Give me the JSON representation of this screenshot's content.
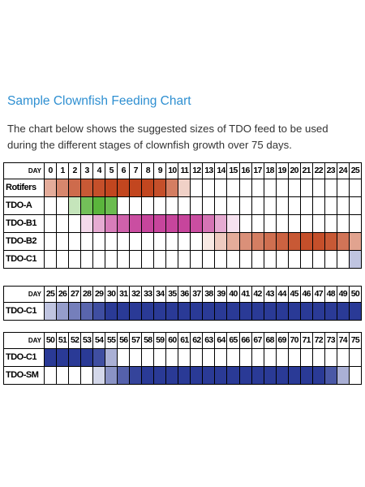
{
  "title": "Sample Clownfish Feeding Chart",
  "description": [
    "The chart below shows the suggested sizes of TDO feed to be used",
    "during the different stages of clownfish growth over 75 days."
  ],
  "colors": {
    "title": "#2e8fd1",
    "rotifers": "#c2461f",
    "tdo_a": "#5ab53c",
    "tdo_b1": "#c7459c",
    "tdo_b2": "#c2461f",
    "tdo_c1": "#2a3a96",
    "tdo_sm": "#2a3a96"
  },
  "tables": [
    {
      "day_label": "DAY",
      "days": [
        0,
        1,
        2,
        3,
        4,
        5,
        6,
        7,
        8,
        9,
        10,
        11,
        12,
        13,
        14,
        15,
        16,
        17,
        18,
        19,
        20,
        21,
        22,
        23,
        24,
        25
      ],
      "rows": [
        {
          "label": "Rotifers",
          "color": "rotifers",
          "levels": [
            0.45,
            0.65,
            0.8,
            0.9,
            0.95,
            1,
            1,
            1,
            1,
            0.95,
            0.7,
            0.25,
            0,
            0,
            0,
            0,
            0,
            0,
            0,
            0,
            0,
            0,
            0,
            0,
            0,
            0
          ]
        },
        {
          "label": "TDO-A",
          "color": "tdo_a",
          "levels": [
            0,
            0,
            0.35,
            0.85,
            1,
            0.9,
            0,
            0,
            0,
            0,
            0,
            0,
            0,
            0,
            0,
            0,
            0,
            0,
            0,
            0,
            0,
            0,
            0,
            0,
            0,
            0
          ]
        },
        {
          "label": "TDO-B1",
          "color": "tdo_b1",
          "levels": [
            0,
            0,
            0,
            0.2,
            0.45,
            0.7,
            0.85,
            0.95,
            1,
            1,
            1,
            1,
            0.95,
            0.75,
            0.45,
            0.15,
            0,
            0,
            0,
            0,
            0,
            0,
            0,
            0,
            0,
            0
          ]
        },
        {
          "label": "TDO-B2",
          "color": "tdo_b2",
          "levels": [
            0,
            0,
            0,
            0,
            0,
            0,
            0,
            0,
            0,
            0,
            0,
            0,
            0,
            0.12,
            0.28,
            0.45,
            0.6,
            0.7,
            0.78,
            0.85,
            0.9,
            0.95,
            0.95,
            0.9,
            0.75,
            0.5
          ]
        },
        {
          "label": "TDO-C1",
          "color": "tdo_c1",
          "levels": [
            0,
            0,
            0,
            0,
            0,
            0,
            0,
            0,
            0,
            0,
            0,
            0,
            0,
            0,
            0,
            0,
            0,
            0,
            0,
            0,
            0,
            0,
            0,
            0,
            0,
            0.3
          ]
        }
      ]
    },
    {
      "day_label": "DAY",
      "days": [
        25,
        26,
        27,
        28,
        29,
        30,
        31,
        32,
        33,
        34,
        35,
        36,
        37,
        38,
        39,
        40,
        41,
        42,
        43,
        44,
        45,
        46,
        47,
        48,
        49,
        50
      ],
      "rows": [
        {
          "label": "TDO-C1",
          "color": "tdo_c1",
          "levels": [
            0.3,
            0.5,
            0.65,
            0.78,
            0.9,
            1,
            1,
            1,
            1,
            1,
            1,
            1,
            1,
            1,
            1,
            1,
            1,
            1,
            1,
            1,
            1,
            1,
            1,
            1,
            1,
            1
          ]
        }
      ]
    },
    {
      "day_label": "DAY",
      "days": [
        50,
        51,
        52,
        53,
        54,
        55,
        56,
        57,
        58,
        59,
        60,
        61,
        62,
        63,
        64,
        65,
        66,
        67,
        68,
        69,
        70,
        71,
        72,
        73,
        74,
        75
      ],
      "rows": [
        {
          "label": "TDO-C1",
          "color": "tdo_c1",
          "levels": [
            1,
            1,
            1,
            1,
            0.9,
            0.4,
            0,
            0,
            0,
            0,
            0,
            0,
            0,
            0,
            0,
            0,
            0,
            0,
            0,
            0,
            0,
            0,
            0,
            0,
            0,
            0
          ]
        },
        {
          "label": "TDO-SM",
          "color": "tdo_sm",
          "levels": [
            0,
            0,
            0,
            0,
            0.2,
            0.55,
            0.8,
            0.95,
            1,
            1,
            1,
            1,
            1,
            1,
            1,
            1,
            1,
            1,
            1,
            1,
            1,
            1,
            1,
            0.85,
            0.4,
            0
          ]
        }
      ]
    }
  ]
}
